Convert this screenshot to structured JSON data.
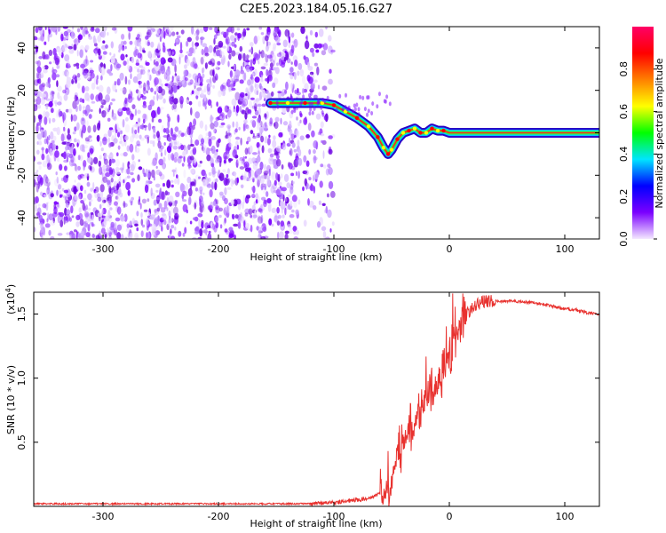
{
  "title": "C2E5.2023.184.05.16.G27",
  "chart_data": [
    {
      "type": "heatmap",
      "xlabel": "Height of straight line (km)",
      "ylabel": "Frequency (Hz)",
      "xlim": [
        -360,
        130
      ],
      "ylim": [
        -50,
        50
      ],
      "xticks": [
        -300,
        -200,
        -100,
        0,
        100
      ],
      "yticks": [
        -40,
        -20,
        0,
        20,
        40
      ],
      "noise_region": {
        "x": [
          -360,
          -100
        ],
        "y": [
          -50,
          50
        ]
      },
      "ridge": {
        "x": [
          -155,
          -140,
          -125,
          -110,
          -100,
          -90,
          -80,
          -70,
          -62,
          -57,
          -53,
          -50,
          -45,
          -40,
          -35,
          -30,
          -25,
          -20,
          -15,
          -10,
          -5,
          0,
          20,
          60,
          100,
          130
        ],
        "y": [
          14,
          14,
          14,
          14,
          13,
          10,
          7,
          3,
          -2,
          -7,
          -10,
          -8,
          -3,
          0,
          1,
          2,
          0,
          0,
          2,
          1,
          1,
          0,
          0,
          0,
          0,
          0
        ]
      },
      "colorbar": {
        "label": "Normalized spectral amplitude",
        "ticks": [
          "0.0",
          "0.2",
          "0.4",
          "0.6",
          "0.8"
        ],
        "range": [
          0,
          1
        ],
        "colors": [
          "#f4e8ff",
          "#7b00ff",
          "#0000ff",
          "#00e5ff",
          "#00ff00",
          "#ffff00",
          "#ff8000",
          "#ff0000",
          "#ff0066"
        ]
      }
    },
    {
      "type": "line",
      "xlabel": "Height of straight line (km)",
      "ylabel": "SNR (10 * v/v)",
      "multiplier_label": "(x10",
      "multiplier_exponent": "4",
      "multiplier_close": ")",
      "xlim": [
        -360,
        130
      ],
      "ylim": [
        0,
        1.67
      ],
      "xticks": [
        -300,
        -200,
        -100,
        0,
        100
      ],
      "yticks": [
        "0.5",
        "1.0",
        "1.5"
      ],
      "series": [
        {
          "color": "#e8322f",
          "x": [
            -360,
            -300,
            -250,
            -200,
            -150,
            -120,
            -110,
            -100,
            -90,
            -80,
            -70,
            -60,
            -55,
            -50,
            -45,
            -40,
            -35,
            -30,
            -25,
            -20,
            -15,
            -10,
            -5,
            0,
            5,
            10,
            15,
            20,
            25,
            30,
            40,
            50,
            60,
            70,
            80,
            90,
            100,
            110,
            120,
            130
          ],
          "y": [
            0.02,
            0.02,
            0.02,
            0.02,
            0.02,
            0.02,
            0.025,
            0.03,
            0.04,
            0.05,
            0.06,
            0.1,
            0.12,
            0.2,
            0.4,
            0.5,
            0.6,
            0.65,
            0.8,
            0.85,
            0.9,
            0.95,
            1.1,
            1.15,
            1.3,
            1.45,
            1.5,
            1.55,
            1.58,
            1.6,
            1.6,
            1.6,
            1.6,
            1.59,
            1.58,
            1.56,
            1.54,
            1.53,
            1.51,
            1.5
          ]
        }
      ]
    }
  ]
}
